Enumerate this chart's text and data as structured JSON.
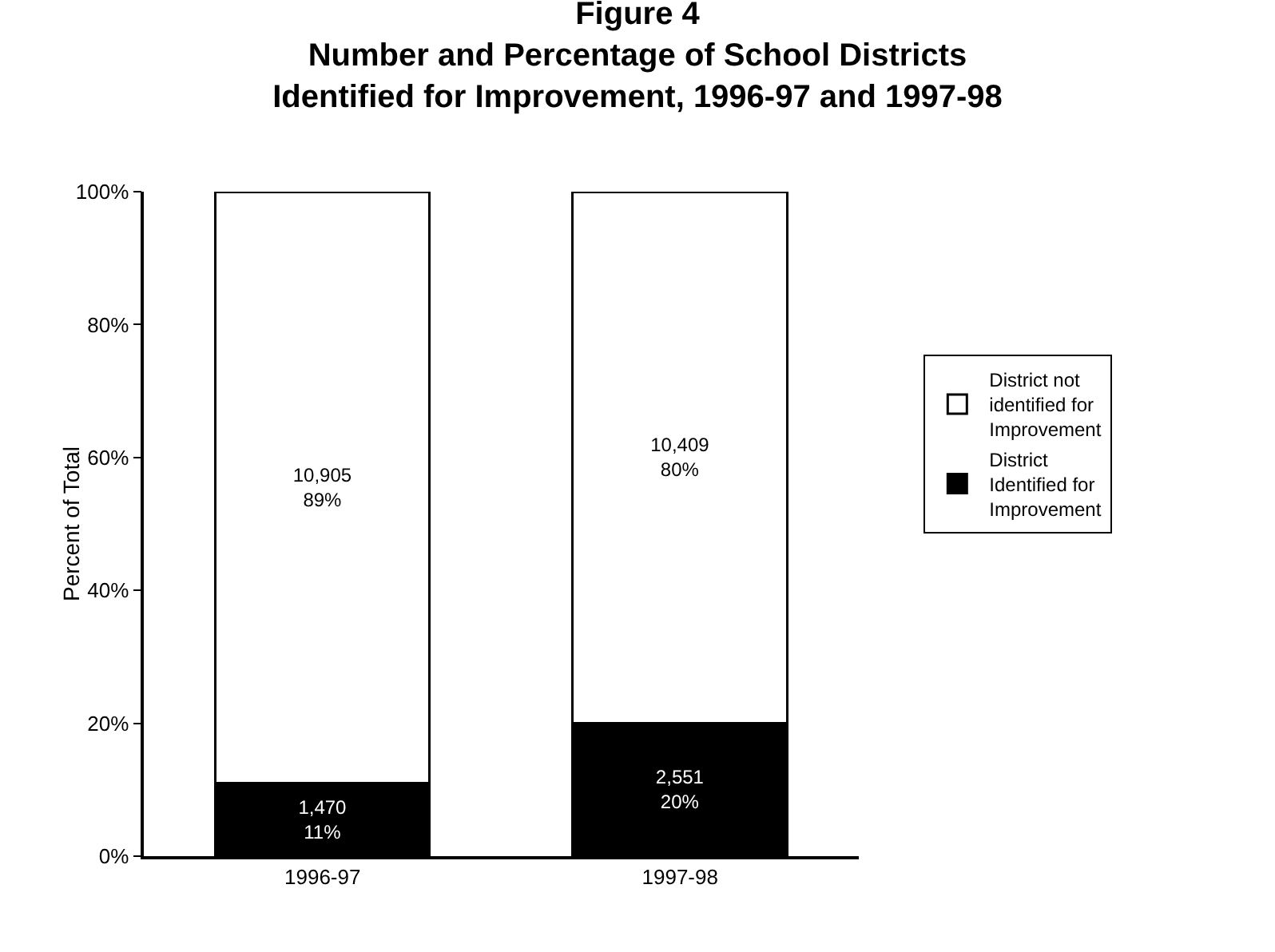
{
  "chart_data": {
    "type": "bar",
    "stacked": true,
    "title": "Figure 4\nNumber and Percentage of School Districts\nIdentified for Improvement, 1996-97 and 1997-98",
    "ylabel": "Percent of Total",
    "categories": [
      "1996-97",
      "1997-98"
    ],
    "series": [
      {
        "name": "District Identified for Improvement",
        "color": "#000000",
        "values": [
          11,
          20
        ],
        "value_labels": [
          "1,470\n11%",
          "2,551\n20%"
        ]
      },
      {
        "name": "District not identified for Improvement",
        "color": "#ffffff",
        "values": [
          89,
          80
        ],
        "value_labels": [
          "10,905\n89%",
          "10,409\n80%"
        ]
      }
    ],
    "ylim": [
      0,
      100
    ],
    "yticks": [
      {
        "value": 0,
        "label": "0%"
      },
      {
        "value": 20,
        "label": "20%"
      },
      {
        "value": 40,
        "label": "40%"
      },
      {
        "value": 60,
        "label": "60%"
      },
      {
        "value": 80,
        "label": "80%"
      },
      {
        "value": 100,
        "label": "100%"
      }
    ],
    "grid": false,
    "legend": "right"
  }
}
